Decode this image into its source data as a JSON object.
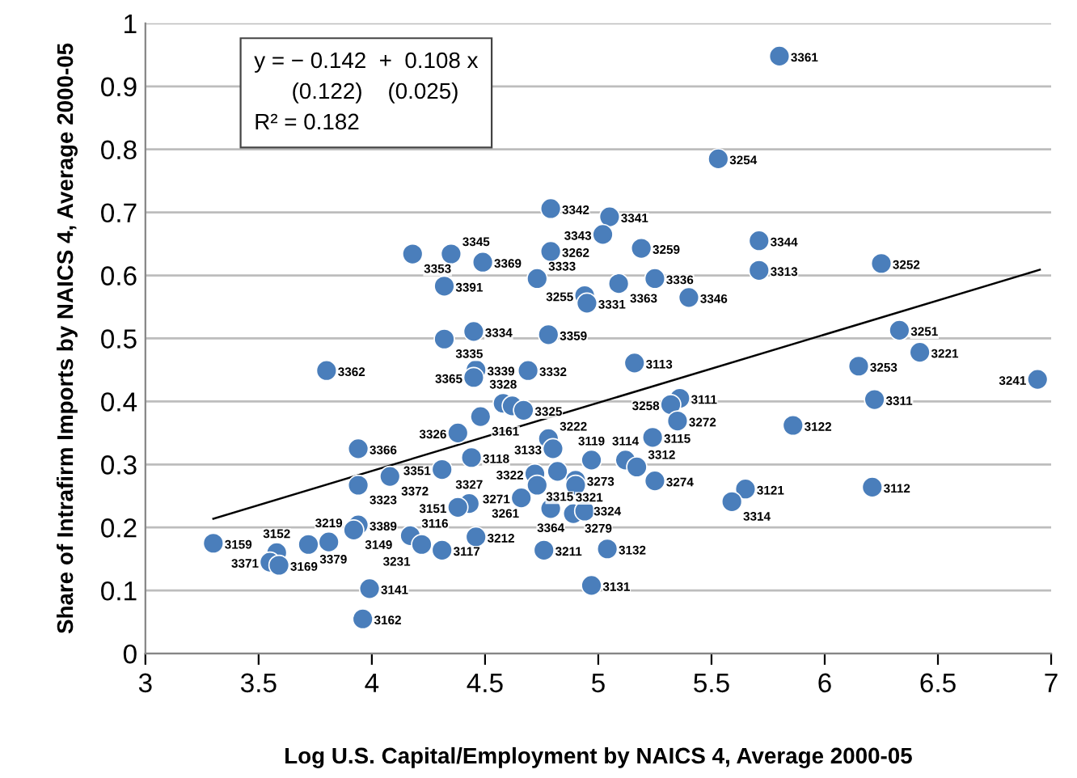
{
  "chart_data": {
    "type": "scatter",
    "xlabel": "Log U.S. Capital/Employment by NAICS 4, Average 2000-05",
    "ylabel": "Share of Intrafirm Imports by NAICS 4, Average 2000-05",
    "xlim": [
      3,
      7
    ],
    "xticks": [
      3,
      3.5,
      4,
      4.5,
      5,
      5.5,
      6,
      6.5,
      7
    ],
    "ylim": [
      0,
      1
    ],
    "yticks": [
      0,
      0.1,
      0.2,
      0.3,
      0.4,
      0.5,
      0.6,
      0.7,
      0.8,
      0.9,
      1
    ],
    "grid": "y",
    "legend": false,
    "marker": "circle",
    "series": [
      {
        "color": "#4a7ebb",
        "x": [
          5.8,
          5.53,
          5.05,
          5.02,
          5.19,
          5.71,
          5.71,
          6.25,
          5.09,
          5.25,
          4.94,
          4.95,
          5.4,
          6.33,
          4.79,
          4.18,
          4.35,
          4.49,
          4.79,
          4.32,
          4.73,
          4.45,
          4.78,
          4.32,
          4.46,
          4.45,
          4.69,
          5.16,
          4.58,
          4.62,
          4.67,
          4.48,
          4.38,
          4.44,
          4.78,
          4.8,
          4.97,
          5.12,
          5.17,
          5.25,
          5.24,
          5.36,
          5.32,
          5.35,
          4.72,
          4.82,
          4.9,
          4.9,
          4.73,
          4.66,
          4.43,
          4.31,
          4.38,
          4.79,
          4.89,
          4.94,
          4.46,
          4.31,
          4.76,
          5.04,
          4.97,
          5.65,
          5.59,
          3.8,
          3.94,
          4.08,
          3.94,
          3.94,
          3.92,
          3.81,
          3.72,
          3.3,
          3.58,
          3.55,
          3.59,
          4.17,
          4.22,
          3.99,
          3.96,
          6.42,
          6.15,
          6.94,
          6.22,
          5.86,
          6.21
        ],
        "values": [
          0.948,
          0.785,
          0.693,
          0.665,
          0.643,
          0.655,
          0.608,
          0.619,
          0.587,
          0.595,
          0.568,
          0.556,
          0.565,
          0.513,
          0.706,
          0.634,
          0.634,
          0.621,
          0.638,
          0.583,
          0.595,
          0.511,
          0.506,
          0.499,
          0.45,
          0.438,
          0.449,
          0.461,
          0.397,
          0.393,
          0.386,
          0.376,
          0.35,
          0.311,
          0.341,
          0.325,
          0.307,
          0.307,
          0.296,
          0.274,
          0.343,
          0.405,
          0.395,
          0.369,
          0.285,
          0.289,
          0.275,
          0.267,
          0.267,
          0.247,
          0.238,
          0.292,
          0.232,
          0.23,
          0.222,
          0.226,
          0.185,
          0.164,
          0.164,
          0.166,
          0.108,
          0.261,
          0.241,
          0.449,
          0.325,
          0.281,
          0.267,
          0.204,
          0.196,
          0.177,
          0.173,
          0.175,
          0.16,
          0.145,
          0.14,
          0.187,
          0.173,
          0.103,
          0.055,
          0.478,
          0.456,
          0.435,
          0.403,
          0.362,
          0.264
        ]
      },
      {
        "type": "line",
        "color": "#000000",
        "marker": "none",
        "line_style": "solid",
        "x": [
          3.3,
          6.95
        ],
        "values": [
          0.214,
          0.609
        ]
      }
    ],
    "annotations": [
      "y = − 0.142  +  0.108 x\n      (0.122)    (0.025)",
      "R² = 0.182",
      {
        "text": "3361",
        "x": 5.8,
        "y": 0.948
      },
      {
        "text": "3254",
        "x": 5.53,
        "y": 0.785
      },
      {
        "text": "3341",
        "x": 5.05,
        "y": 0.693
      },
      {
        "text": "3343",
        "x": 5.02,
        "y": 0.665
      },
      {
        "text": "3259",
        "x": 5.19,
        "y": 0.643
      },
      {
        "text": "3344",
        "x": 5.71,
        "y": 0.655
      },
      {
        "text": "3313",
        "x": 5.71,
        "y": 0.608
      },
      {
        "text": "3252",
        "x": 6.25,
        "y": 0.619
      },
      {
        "text": "3363",
        "x": 5.09,
        "y": 0.587
      },
      {
        "text": "3336",
        "x": 5.25,
        "y": 0.595
      },
      {
        "text": "3255",
        "x": 4.94,
        "y": 0.568
      },
      {
        "text": "3331",
        "x": 4.95,
        "y": 0.556
      },
      {
        "text": "3346",
        "x": 5.4,
        "y": 0.565
      },
      {
        "text": "3251",
        "x": 6.33,
        "y": 0.513
      },
      {
        "text": "3342",
        "x": 4.79,
        "y": 0.706
      },
      {
        "text": "3353",
        "x": 4.18,
        "y": 0.634
      },
      {
        "text": "3345",
        "x": 4.35,
        "y": 0.634
      },
      {
        "text": "3369",
        "x": 4.49,
        "y": 0.621
      },
      {
        "text": "3262",
        "x": 4.79,
        "y": 0.638
      },
      {
        "text": "3391",
        "x": 4.32,
        "y": 0.583
      },
      {
        "text": "3333",
        "x": 4.73,
        "y": 0.595
      },
      {
        "text": "3334",
        "x": 4.45,
        "y": 0.511
      },
      {
        "text": "3359",
        "x": 4.78,
        "y": 0.506
      },
      {
        "text": "3335",
        "x": 4.32,
        "y": 0.499
      },
      {
        "text": "3339",
        "x": 4.46,
        "y": 0.45
      },
      {
        "text": "3365",
        "x": 4.45,
        "y": 0.438
      },
      {
        "text": "3332",
        "x": 4.69,
        "y": 0.449
      },
      {
        "text": "3113",
        "x": 5.16,
        "y": 0.461
      },
      {
        "text": "3328",
        "x": 4.58,
        "y": 0.397
      },
      {
        "text": "3325",
        "x": 4.67,
        "y": 0.386
      },
      {
        "text": "3161",
        "x": 4.48,
        "y": 0.376
      },
      {
        "text": "3326",
        "x": 4.38,
        "y": 0.35
      },
      {
        "text": "3118",
        "x": 4.44,
        "y": 0.311
      },
      {
        "text": "3222",
        "x": 4.78,
        "y": 0.341
      },
      {
        "text": "3133",
        "x": 4.8,
        "y": 0.325
      },
      {
        "text": "3119",
        "x": 4.97,
        "y": 0.307
      },
      {
        "text": "3114",
        "x": 5.12,
        "y": 0.307
      },
      {
        "text": "3312",
        "x": 5.17,
        "y": 0.296
      },
      {
        "text": "3274",
        "x": 5.25,
        "y": 0.274
      },
      {
        "text": "3115",
        "x": 5.24,
        "y": 0.343
      },
      {
        "text": "3111",
        "x": 5.36,
        "y": 0.405
      },
      {
        "text": "3258",
        "x": 5.32,
        "y": 0.395
      },
      {
        "text": "3272",
        "x": 5.35,
        "y": 0.369
      },
      {
        "text": "3322",
        "x": 4.72,
        "y": 0.285
      },
      {
        "text": "3321",
        "x": 4.82,
        "y": 0.289
      },
      {
        "text": "3273",
        "x": 4.9,
        "y": 0.275
      },
      {
        "text": "3324",
        "x": 4.9,
        "y": 0.267
      },
      {
        "text": "3261",
        "x": 4.73,
        "y": 0.267
      },
      {
        "text": "3271",
        "x": 4.66,
        "y": 0.247
      },
      {
        "text": "3327",
        "x": 4.43,
        "y": 0.238
      },
      {
        "text": "3351",
        "x": 4.31,
        "y": 0.292
      },
      {
        "text": "3151",
        "x": 4.38,
        "y": 0.232
      },
      {
        "text": "3364",
        "x": 4.79,
        "y": 0.23
      },
      {
        "text": "3279",
        "x": 4.89,
        "y": 0.222
      },
      {
        "text": "3315",
        "x": 4.94,
        "y": 0.226
      },
      {
        "text": "3212",
        "x": 4.46,
        "y": 0.185
      },
      {
        "text": "3117",
        "x": 4.31,
        "y": 0.164
      },
      {
        "text": "3211",
        "x": 4.76,
        "y": 0.164
      },
      {
        "text": "3132",
        "x": 5.04,
        "y": 0.166
      },
      {
        "text": "3131",
        "x": 4.97,
        "y": 0.108
      },
      {
        "text": "3121",
        "x": 5.65,
        "y": 0.261
      },
      {
        "text": "3314",
        "x": 5.59,
        "y": 0.241
      },
      {
        "text": "3362",
        "x": 3.8,
        "y": 0.449
      },
      {
        "text": "3366",
        "x": 3.94,
        "y": 0.325
      },
      {
        "text": "3372",
        "x": 4.08,
        "y": 0.281
      },
      {
        "text": "3323",
        "x": 3.94,
        "y": 0.267
      },
      {
        "text": "3389",
        "x": 3.94,
        "y": 0.204
      },
      {
        "text": "3149",
        "x": 3.92,
        "y": 0.196
      },
      {
        "text": "3219",
        "x": 3.81,
        "y": 0.177
      },
      {
        "text": "3379",
        "x": 3.72,
        "y": 0.173
      },
      {
        "text": "3159",
        "x": 3.3,
        "y": 0.175
      },
      {
        "text": "3152",
        "x": 3.58,
        "y": 0.16
      },
      {
        "text": "3371",
        "x": 3.55,
        "y": 0.145
      },
      {
        "text": "3169",
        "x": 3.59,
        "y": 0.14
      },
      {
        "text": "3116",
        "x": 4.17,
        "y": 0.187
      },
      {
        "text": "3231",
        "x": 4.22,
        "y": 0.173
      },
      {
        "text": "3141",
        "x": 3.99,
        "y": 0.103
      },
      {
        "text": "3162",
        "x": 3.96,
        "y": 0.055
      },
      {
        "text": "3221",
        "x": 6.42,
        "y": 0.478
      },
      {
        "text": "3253",
        "x": 6.15,
        "y": 0.456
      },
      {
        "text": "3241",
        "x": 6.94,
        "y": 0.435
      },
      {
        "text": "3311",
        "x": 6.22,
        "y": 0.403
      },
      {
        "text": "3122",
        "x": 5.86,
        "y": 0.362
      },
      {
        "text": "3112",
        "x": 6.21,
        "y": 0.264
      }
    ]
  }
}
